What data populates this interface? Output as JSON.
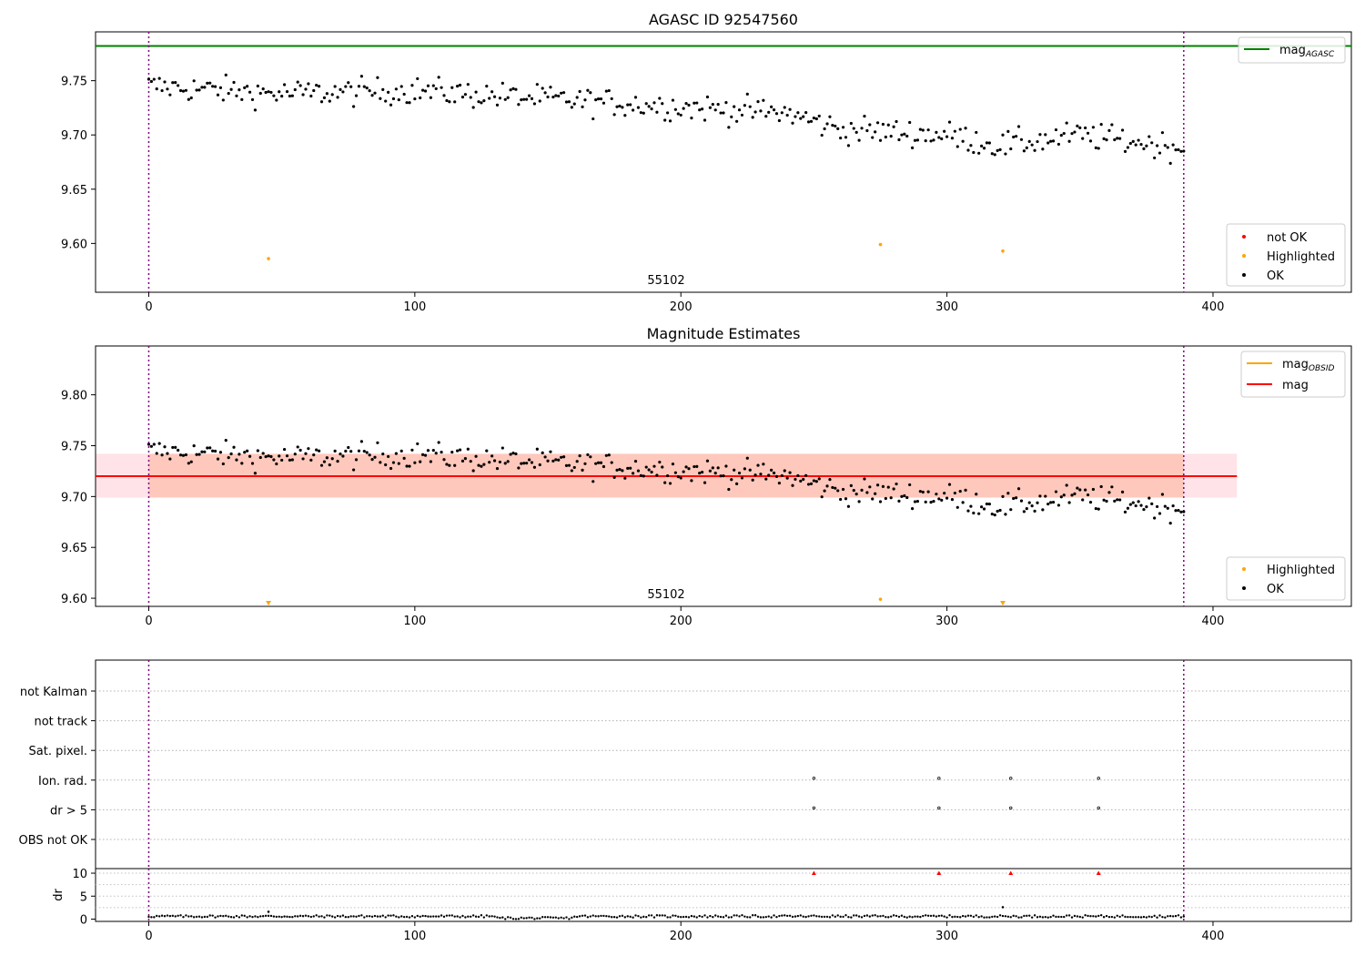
{
  "panel1": {
    "title": "AGASC ID 92547560",
    "obsid_label": "55102",
    "legend_top": [
      {
        "label": "mag",
        "sub": "AGASC",
        "color": "#008000",
        "kind": "line"
      }
    ],
    "legend_bottom": [
      {
        "label": "not OK",
        "color": "#ff0000",
        "kind": "point"
      },
      {
        "label": "Highlighted",
        "color": "#ffa500",
        "kind": "point"
      },
      {
        "label": "OK",
        "color": "#000000",
        "kind": "point"
      }
    ]
  },
  "panel2": {
    "title": "Magnitude Estimates",
    "obsid_label": "55102",
    "legend_top": [
      {
        "label": "mag",
        "sub": "OBSID",
        "color": "#ffa500",
        "kind": "line"
      },
      {
        "label": "mag",
        "sub": "",
        "color": "#ff0000",
        "kind": "line"
      }
    ],
    "legend_bottom": [
      {
        "label": "Highlighted",
        "color": "#ffa500",
        "kind": "point"
      },
      {
        "label": "OK",
        "color": "#000000",
        "kind": "point"
      }
    ]
  },
  "panel3": {
    "flag_labels": [
      "not Kalman",
      "not track",
      "Sat. pixel.",
      "Ion. rad.",
      "dr > 5",
      "OBS not OK"
    ],
    "dr_ylabel": "dr"
  },
  "chart_data": [
    {
      "type": "scatter",
      "title": "AGASC ID 92547560",
      "xlim": [
        -20,
        452
      ],
      "ylim": [
        9.555,
        9.795
      ],
      "xticks": [
        0,
        100,
        200,
        300,
        400
      ],
      "yticks": [
        9.6,
        9.65,
        9.7,
        9.75
      ],
      "mag_agasc": 9.782,
      "obs_boundaries": [
        0,
        389
      ],
      "highlighted_points": [
        [
          45,
          9.586
        ],
        [
          275,
          9.599
        ],
        [
          321,
          9.593
        ]
      ],
      "ok_series": {
        "n": 390,
        "anchors": [
          [
            0,
            9.745
          ],
          [
            50,
            9.738
          ],
          [
            100,
            9.741
          ],
          [
            150,
            9.733
          ],
          [
            200,
            9.726
          ],
          [
            240,
            9.72
          ],
          [
            260,
            9.705
          ],
          [
            300,
            9.7
          ],
          [
            320,
            9.69
          ],
          [
            350,
            9.7
          ],
          [
            389,
            9.688
          ]
        ],
        "scatter_amplitude": 0.012
      },
      "legend_loc": "upper right / lower right"
    },
    {
      "type": "scatter",
      "title": "Magnitude Estimates",
      "xlim": [
        -20,
        452
      ],
      "ylim": [
        9.592,
        9.848
      ],
      "xticks": [
        0,
        100,
        200,
        300,
        400
      ],
      "yticks": [
        9.6,
        9.65,
        9.7,
        9.75,
        9.8
      ],
      "mag": 9.72,
      "mag_band": [
        9.699,
        9.742
      ],
      "mag_band_x": [
        -20,
        409
      ],
      "mag_obsid_band_x": [
        0,
        389
      ],
      "highlighted_points": [
        [
          275,
          9.599
        ]
      ],
      "highlighted_below_axis": [
        45,
        321
      ],
      "legend_loc": "upper right / lower right"
    },
    {
      "type": "scatter",
      "title": "",
      "flags": {
        "not Kalman": [],
        "not track": [],
        "Sat. pixel.": [],
        "Ion. rad.": [
          250,
          297,
          324,
          357
        ],
        "dr > 5": [
          250,
          297,
          324,
          357
        ],
        "OBS not OK": []
      },
      "dr": {
        "ylim": [
          -0.5,
          11
        ],
        "yticks": [
          0,
          5,
          10
        ],
        "high_points": [
          250,
          297,
          324,
          357
        ],
        "typical": 0.6,
        "outliers": [
          [
            45,
            1.6
          ],
          [
            321,
            2.6
          ]
        ]
      }
    }
  ]
}
